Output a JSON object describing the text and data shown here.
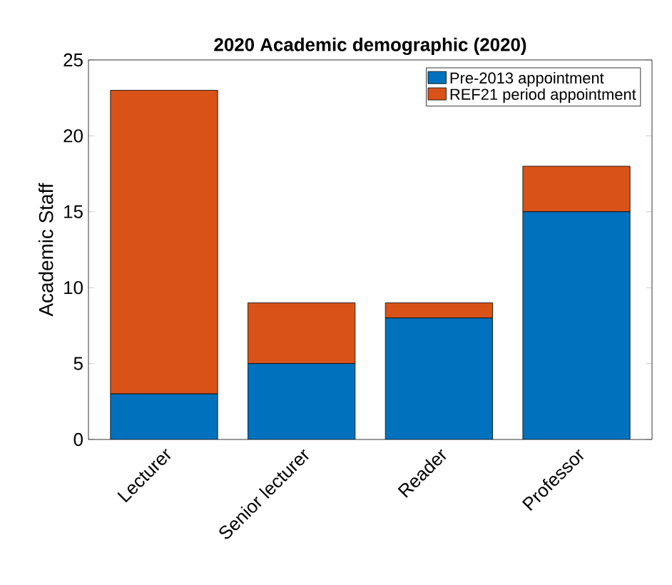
{
  "chart_data": {
    "type": "bar",
    "stacked": true,
    "title": "2020 Academic demographic (2020)",
    "ylabel": "Academic Staff",
    "categories": [
      "Lecturer",
      "Senior lecturer",
      "Reader",
      "Professor"
    ],
    "series": [
      {
        "name": "Pre-2013 appointment",
        "color": "#0072bd",
        "values": [
          3,
          5,
          8,
          15
        ]
      },
      {
        "name": "REF21 period appointment",
        "color": "#d95319",
        "values": [
          20,
          4,
          1,
          3
        ]
      }
    ],
    "ylim": [
      0,
      25
    ],
    "yticks": [
      0,
      5,
      10,
      15,
      20,
      25
    ],
    "legend": "top right"
  }
}
